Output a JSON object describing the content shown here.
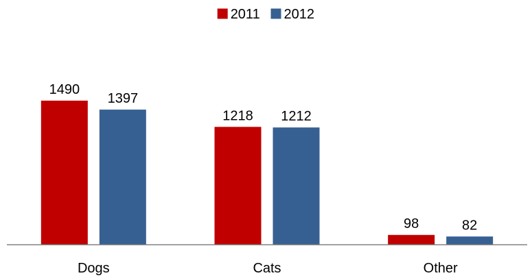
{
  "chart_data": {
    "type": "bar",
    "title": "",
    "xlabel": "",
    "ylabel": "",
    "categories": [
      "Dogs",
      "Cats",
      "Other"
    ],
    "series": [
      {
        "name": "2011",
        "values": [
          1490,
          1218,
          98
        ],
        "color": "#c00000"
      },
      {
        "name": "2012",
        "values": [
          1397,
          1212,
          82
        ],
        "color": "#376092"
      }
    ],
    "ylim": [
      0,
      1490
    ],
    "grid": false,
    "legend_position": "top-center",
    "axis_color": "#808080"
  }
}
